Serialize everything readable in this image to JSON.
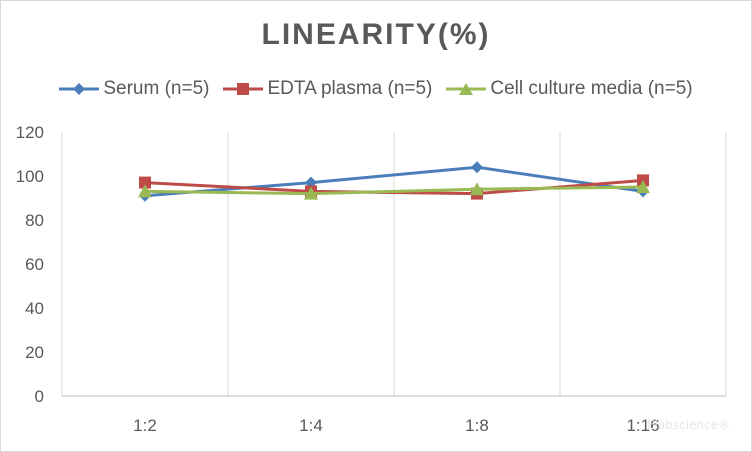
{
  "chart_data": {
    "type": "line",
    "title": "LINEARITY(%)",
    "xlabel": "",
    "ylabel": "",
    "categories": [
      "1:2",
      "1:4",
      "1:8",
      "1:16"
    ],
    "ylim": [
      0,
      120
    ],
    "yticks": [
      0,
      20,
      40,
      60,
      80,
      100,
      120
    ],
    "grid": "vertical",
    "legend_position": "top",
    "series": [
      {
        "name": "Serum (n=5)",
        "values": [
          91,
          97,
          104,
          93
        ],
        "color": "#4a7ebb",
        "marker": "diamond"
      },
      {
        "name": "EDTA plasma (n=5)",
        "values": [
          97,
          93,
          92,
          98
        ],
        "color": "#be4b48",
        "marker": "square"
      },
      {
        "name": "Cell culture media (n=5)",
        "values": [
          93,
          92,
          94,
          95
        ],
        "color": "#98b954",
        "marker": "triangle"
      }
    ]
  },
  "watermark": "Elabscience®"
}
